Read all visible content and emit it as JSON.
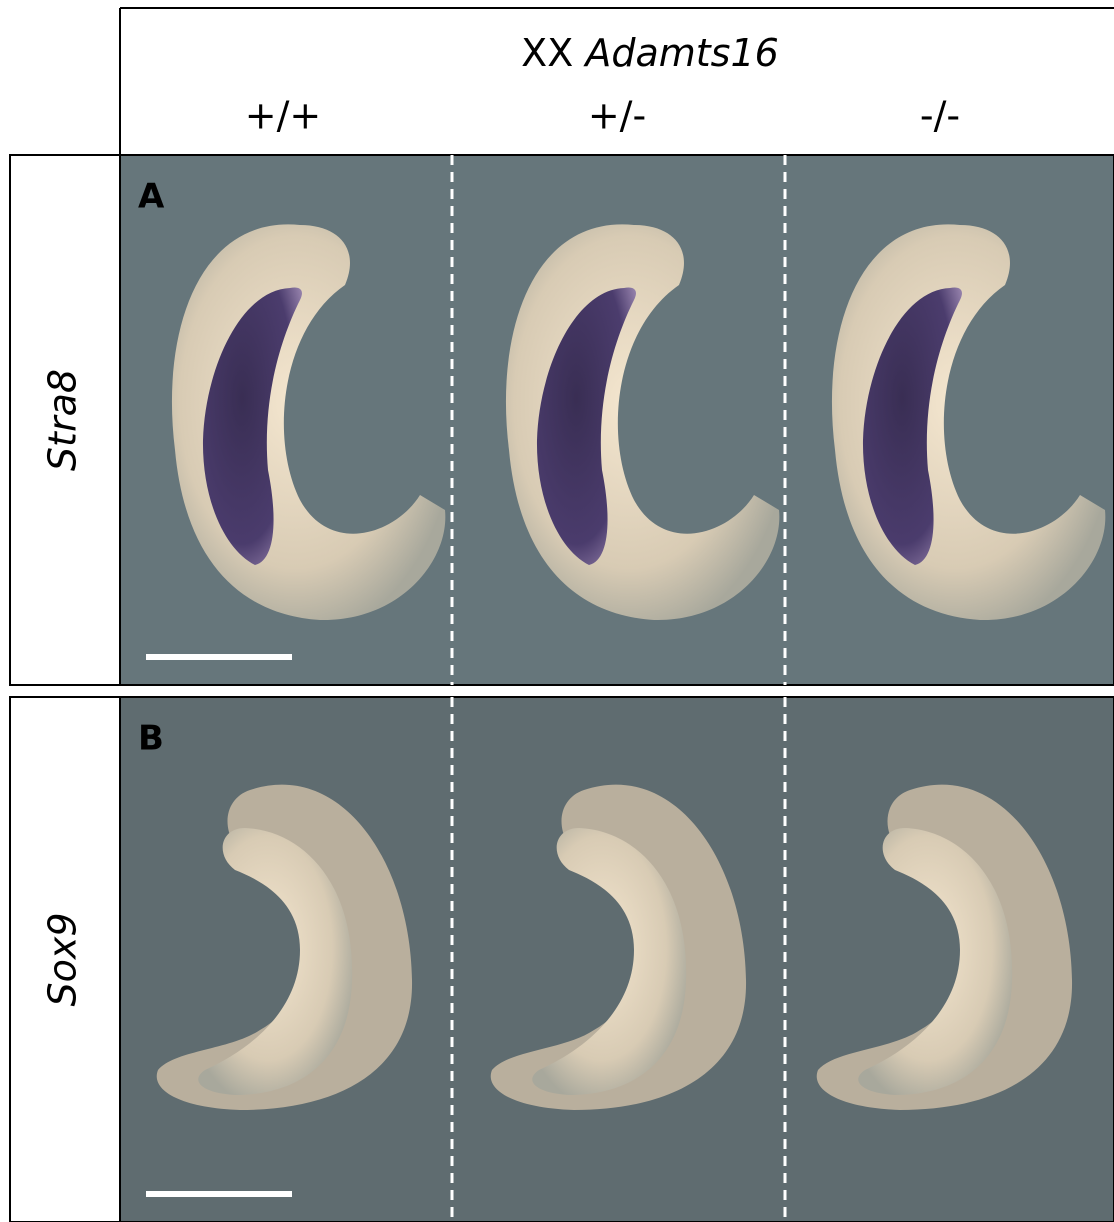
{
  "header": {
    "genotype_prefix": "XX",
    "gene": "Adamts16",
    "columns": [
      "+/+",
      "+/-",
      "-/-"
    ]
  },
  "rows": [
    {
      "panel": "A",
      "label": "Stra8"
    },
    {
      "panel": "B",
      "label": "Sox9"
    }
  ]
}
